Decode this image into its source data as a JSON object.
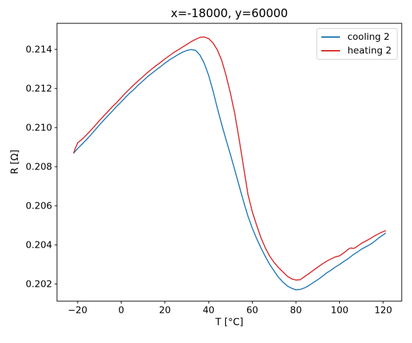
{
  "chart_data": {
    "type": "line",
    "title": "x=-18000, y=60000",
    "xlabel": "T [°C]",
    "ylabel": "R [Ω]",
    "xlim": [
      -29.43,
      128.43
    ],
    "ylim": [
      0.20112,
      0.21534
    ],
    "grid": false,
    "background_color": "#ffffff",
    "spine_color": "#000000",
    "legend": {
      "position": "upper right",
      "edge_color": "#d2d2d2"
    },
    "xtick_values": [
      -20,
      0,
      20,
      40,
      60,
      80,
      100,
      120
    ],
    "xtick_labels": [
      "−20",
      "0",
      "20",
      "40",
      "60",
      "80",
      "100",
      "120"
    ],
    "ytick_values": [
      0.202,
      0.204,
      0.206,
      0.208,
      0.21,
      0.212,
      0.214
    ],
    "ytick_labels": [
      "0.202",
      "0.204",
      "0.206",
      "0.208",
      "0.210",
      "0.212",
      "0.214"
    ],
    "series": [
      {
        "name": "cooling 2",
        "color": "#1f77b4",
        "x": [
          -21.8,
          -21,
          -20,
          -18,
          -16,
          -14,
          -12,
          -10,
          -8,
          -6,
          -4,
          -2,
          0,
          2,
          4,
          6,
          8,
          10,
          12,
          14,
          16,
          18,
          20,
          22,
          24,
          26,
          28,
          30,
          32,
          34,
          36,
          38,
          40,
          42,
          44,
          46,
          48,
          50,
          52,
          54,
          56,
          58,
          60,
          62,
          64,
          66,
          68,
          70,
          72,
          74,
          76,
          78,
          80,
          82,
          84,
          86,
          88,
          90,
          92,
          94,
          96,
          98,
          100,
          102,
          104,
          106,
          108,
          110,
          112,
          114,
          116,
          118,
          120,
          121
        ],
        "y": [
          0.2087,
          0.2088,
          0.20893,
          0.20915,
          0.20938,
          0.20962,
          0.20988,
          0.21014,
          0.21038,
          0.21062,
          0.21086,
          0.2111,
          0.21132,
          0.21156,
          0.21178,
          0.21198,
          0.2122,
          0.2124,
          0.2126,
          0.21278,
          0.21296,
          0.21312,
          0.2133,
          0.21346,
          0.2136,
          0.21374,
          0.21386,
          0.21395,
          0.214,
          0.21396,
          0.21372,
          0.2133,
          0.21268,
          0.2119,
          0.211,
          0.21016,
          0.20938,
          0.20862,
          0.20782,
          0.20702,
          0.20622,
          0.20548,
          0.20486,
          0.20432,
          0.20384,
          0.2034,
          0.203,
          0.20266,
          0.20234,
          0.2021,
          0.2019,
          0.20178,
          0.2017,
          0.20172,
          0.2018,
          0.20192,
          0.20208,
          0.20222,
          0.20238,
          0.20256,
          0.2027,
          0.20286,
          0.203,
          0.20316,
          0.2033,
          0.20348,
          0.20362,
          0.20378,
          0.2039,
          0.20402,
          0.20418,
          0.20436,
          0.20452,
          0.2046
        ]
      },
      {
        "name": "heating 2",
        "color": "#d62728",
        "x": [
          -21.8,
          -21.4,
          -21,
          -20.5,
          -20,
          -18,
          -16,
          -14,
          -12,
          -10,
          -8,
          -6,
          -4,
          -2,
          0,
          2,
          4,
          6,
          8,
          10,
          12,
          14,
          16,
          18,
          20,
          22,
          24,
          26,
          28,
          30,
          32,
          34,
          36,
          38,
          40,
          42,
          44,
          46,
          48,
          50,
          52,
          54,
          56,
          58,
          60,
          62,
          64,
          66,
          68,
          70,
          72,
          74,
          76,
          78,
          80,
          82,
          84,
          86,
          88,
          90,
          92,
          94,
          96,
          98,
          100,
          102,
          104,
          105,
          106.5,
          108,
          110,
          112,
          114,
          116,
          118,
          120,
          121
        ],
        "y": [
          0.2087,
          0.20882,
          0.20896,
          0.20908,
          0.20922,
          0.2094,
          0.20962,
          0.20986,
          0.2101,
          0.21036,
          0.2106,
          0.21084,
          0.21108,
          0.2113,
          0.21154,
          0.21178,
          0.212,
          0.21222,
          0.21242,
          0.21262,
          0.21282,
          0.213,
          0.21318,
          0.21334,
          0.21352,
          0.21368,
          0.21384,
          0.21398,
          0.21412,
          0.21426,
          0.2144,
          0.21452,
          0.21462,
          0.21464,
          0.21456,
          0.21434,
          0.21398,
          0.21344,
          0.21268,
          0.21176,
          0.2107,
          0.2094,
          0.208,
          0.2066,
          0.2057,
          0.205,
          0.20436,
          0.20384,
          0.20342,
          0.2031,
          0.20284,
          0.20262,
          0.2024,
          0.20226,
          0.2022,
          0.20222,
          0.20238,
          0.20254,
          0.2027,
          0.20286,
          0.20302,
          0.20316,
          0.20328,
          0.20338,
          0.20344,
          0.2036,
          0.20378,
          0.20384,
          0.20382,
          0.20392,
          0.20408,
          0.2042,
          0.20432,
          0.20446,
          0.20458,
          0.20468,
          0.20472
        ]
      }
    ]
  }
}
